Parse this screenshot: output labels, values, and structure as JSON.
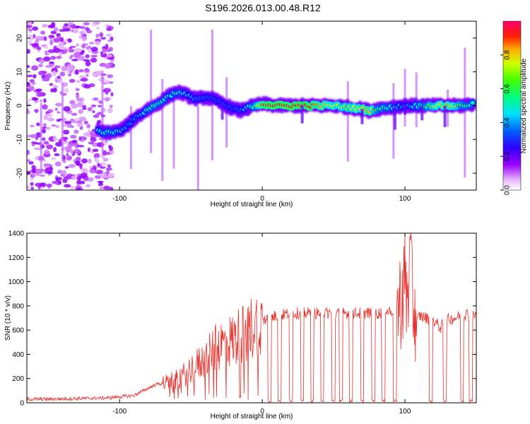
{
  "title": "S196.2026.013.00.48.R12",
  "colors": {
    "snr_line": "#e8302a",
    "frame": "#000000",
    "spectrogram_bg": "#ffffff"
  },
  "chart_data": [
    {
      "type": "heatmap",
      "title": "S196.2026.013.00.48.R12",
      "xlabel": "Height of straight line (km)",
      "ylabel": "Frequency (Hz)",
      "xlim": [
        -165,
        150
      ],
      "ylim": [
        -25,
        25
      ],
      "xticks": [
        -100,
        0,
        100
      ],
      "yticks": [
        -20,
        -10,
        0,
        10,
        20
      ],
      "colorbar": {
        "label": "Normalized spectral amplitude",
        "range": [
          0,
          1
        ],
        "ticks": [
          0.0,
          0.2,
          0.4,
          0.6,
          0.8
        ]
      },
      "ridge": {
        "x": [
          -115,
          -108,
          -100,
          -95,
          -90,
          -85,
          -80,
          -75,
          -70,
          -65,
          -60,
          -55,
          -50,
          -45,
          -40,
          -35,
          -30,
          -25,
          -20,
          -15,
          -10,
          -5,
          0,
          10,
          20,
          30,
          40,
          50,
          60,
          70,
          75,
          80,
          90,
          100,
          110,
          120,
          130,
          140,
          148
        ],
        "y": [
          -7.5,
          -8,
          -7.5,
          -6,
          -4,
          -2.5,
          -1,
          0,
          1.5,
          3,
          4,
          3.5,
          2.5,
          2,
          2.5,
          2,
          1,
          0,
          -1,
          -1.5,
          -0.5,
          0,
          0.5,
          0,
          0,
          0,
          0,
          0,
          -0.5,
          -1,
          -1.5,
          -1,
          -0.5,
          0,
          0,
          0,
          0,
          0,
          0.5
        ],
        "amplitude": [
          0.45,
          0.5,
          0.45,
          0.35,
          0.35,
          0.4,
          0.5,
          0.55,
          0.5,
          0.45,
          0.5,
          0.45,
          0.4,
          0.35,
          0.35,
          0.3,
          0.3,
          0.3,
          0.3,
          0.35,
          0.45,
          0.6,
          0.9,
          0.95,
          0.95,
          0.95,
          0.85,
          0.75,
          0.7,
          0.8,
          0.85,
          0.6,
          0.5,
          0.35,
          0.5,
          0.7,
          0.85,
          0.6,
          0.5
        ]
      }
    },
    {
      "type": "line",
      "xlabel": "Height of straight line (km)",
      "ylabel": "SNR (10 * v/v)",
      "xlim": [
        -165,
        150
      ],
      "ylim": [
        0,
        1400
      ],
      "xticks": [
        -100,
        0,
        100
      ],
      "yticks": [
        0,
        200,
        400,
        600,
        800,
        1000,
        1200,
        1400
      ],
      "series": [
        {
          "name": "SNR",
          "x": [
            -165,
            -150,
            -130,
            -110,
            -100,
            -90,
            -85,
            -80,
            -75,
            -70,
            -65,
            -60,
            -55,
            -50,
            -45,
            -40,
            -35,
            -30,
            -25,
            -20,
            -15,
            -10,
            -5,
            0,
            5,
            10,
            15,
            20,
            25,
            30,
            35,
            40,
            45,
            50,
            55,
            60,
            65,
            70,
            75,
            80,
            85,
            90,
            95,
            98,
            100,
            102,
            104,
            106,
            108,
            110,
            115,
            120,
            125,
            130,
            135,
            140,
            145,
            150
          ],
          "y": [
            30,
            30,
            35,
            40,
            50,
            60,
            90,
            120,
            150,
            160,
            170,
            190,
            230,
            280,
            320,
            360,
            420,
            480,
            500,
            520,
            560,
            600,
            640,
            680,
            700,
            720,
            730,
            740,
            740,
            740,
            740,
            740,
            740,
            740,
            740,
            740,
            740,
            740,
            740,
            740,
            740,
            760,
            780,
            900,
            1000,
            800,
            900,
            700,
            650,
            720,
            700,
            680,
            620,
            690,
            700,
            720,
            740,
            720
          ]
        }
      ],
      "dropout_x": [
        5,
        12,
        20,
        28,
        35,
        42,
        50,
        55,
        62,
        70,
        78,
        85,
        93,
        118,
        128,
        140,
        146
      ]
    }
  ]
}
